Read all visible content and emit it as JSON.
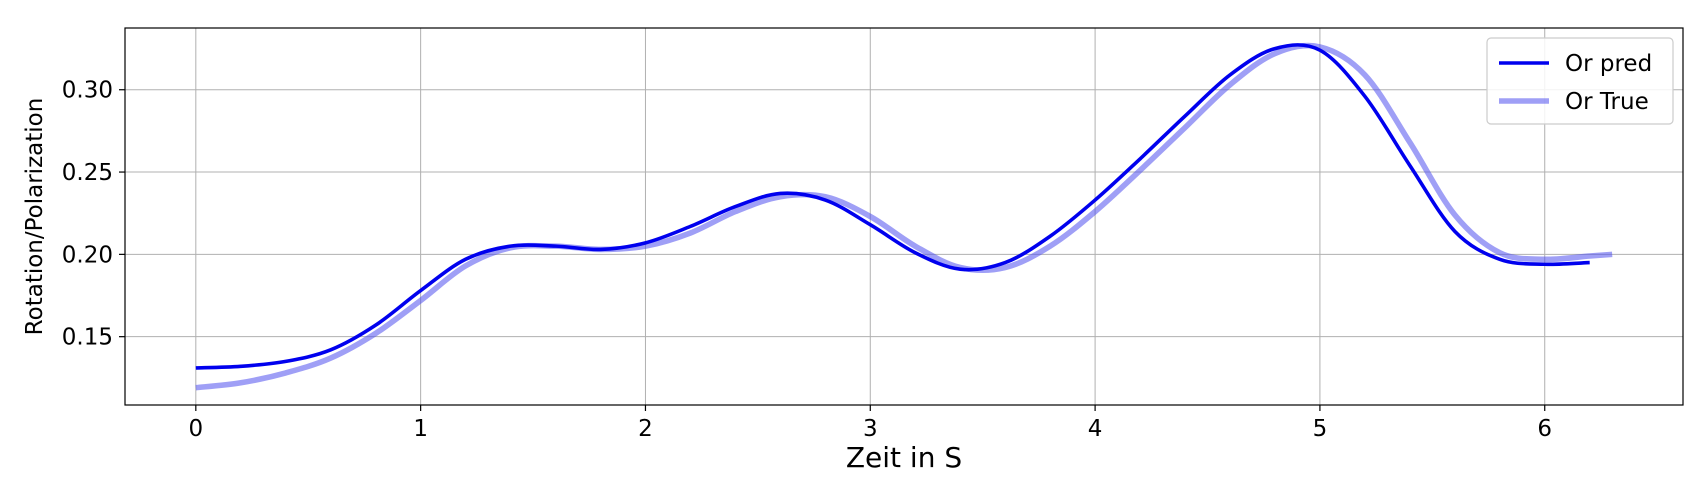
{
  "chart_data": {
    "type": "line",
    "title": "",
    "xlabel": "Zeit in S",
    "ylabel": "Rotation/Polarization",
    "xlim": [
      -0.315,
      6.615
    ],
    "ylim": [
      0.1085,
      0.3375
    ],
    "xticks": [
      0,
      1,
      2,
      3,
      4,
      5,
      6
    ],
    "xtick_labels": [
      "0",
      "1",
      "2",
      "3",
      "4",
      "5",
      "6"
    ],
    "yticks": [
      0.15,
      0.2,
      0.25,
      0.3
    ],
    "ytick_labels": [
      "0.15",
      "0.20",
      "0.25",
      "0.30"
    ],
    "grid": true,
    "legend_position": "top-right",
    "series": [
      {
        "name": "Or pred",
        "color": "#0000ee",
        "opacity": 1.0,
        "x": [
          0,
          0.2,
          0.4,
          0.6,
          0.8,
          1.0,
          1.2,
          1.4,
          1.6,
          1.8,
          2.0,
          2.2,
          2.4,
          2.6,
          2.8,
          3.0,
          3.2,
          3.4,
          3.6,
          3.8,
          4.0,
          4.2,
          4.4,
          4.6,
          4.8,
          5.0,
          5.2,
          5.4,
          5.6,
          5.8,
          6.0,
          6.2
        ],
        "y": [
          0.131,
          0.132,
          0.135,
          0.142,
          0.157,
          0.178,
          0.197,
          0.205,
          0.205,
          0.203,
          0.207,
          0.217,
          0.229,
          0.237,
          0.233,
          0.218,
          0.201,
          0.191,
          0.195,
          0.211,
          0.233,
          0.258,
          0.284,
          0.309,
          0.325,
          0.324,
          0.296,
          0.254,
          0.214,
          0.197,
          0.194,
          0.195
        ]
      },
      {
        "name": "Or True",
        "color": "#5050ee",
        "opacity": 0.55,
        "x": [
          0,
          0.2,
          0.4,
          0.6,
          0.8,
          1.0,
          1.2,
          1.4,
          1.6,
          1.8,
          2.0,
          2.2,
          2.4,
          2.6,
          2.8,
          3.0,
          3.2,
          3.4,
          3.6,
          3.8,
          4.0,
          4.2,
          4.4,
          4.6,
          4.8,
          5.0,
          5.2,
          5.4,
          5.6,
          5.8,
          6.0,
          6.2,
          6.3
        ],
        "y": [
          0.119,
          0.122,
          0.128,
          0.137,
          0.152,
          0.172,
          0.193,
          0.204,
          0.205,
          0.203,
          0.205,
          0.213,
          0.226,
          0.235,
          0.235,
          0.223,
          0.205,
          0.192,
          0.192,
          0.205,
          0.226,
          0.251,
          0.277,
          0.303,
          0.322,
          0.326,
          0.309,
          0.268,
          0.224,
          0.201,
          0.197,
          0.199,
          0.2
        ]
      }
    ]
  }
}
